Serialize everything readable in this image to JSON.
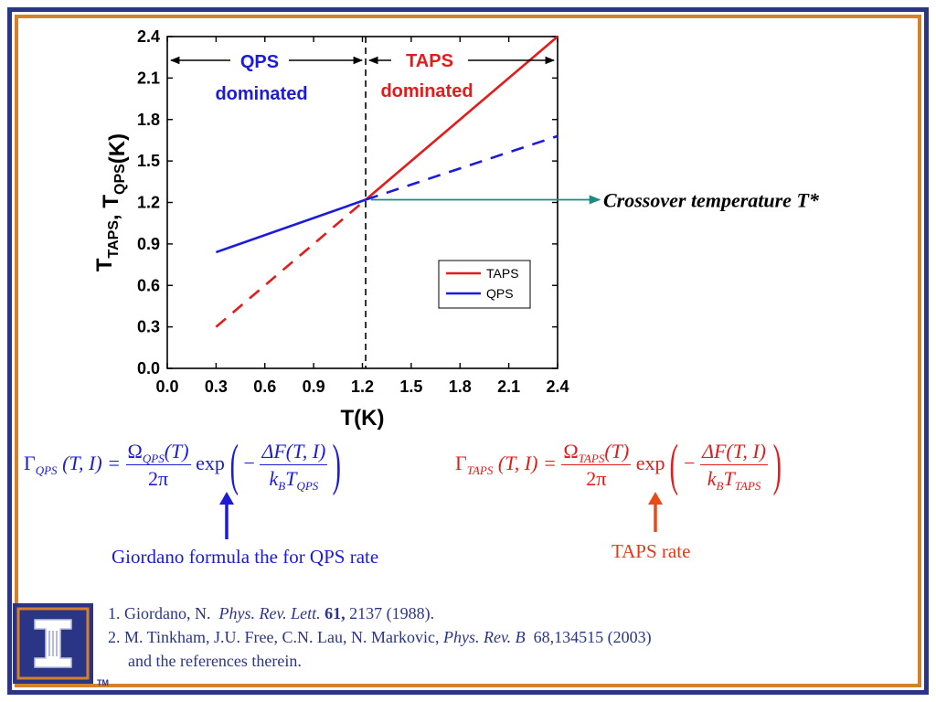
{
  "chart_data": {
    "type": "line",
    "xlabel": "T(K)",
    "ylabel_main": "T",
    "ylabel_sub1": "TAPS",
    "ylabel_mid": ", T",
    "ylabel_sub2": "QPS",
    "ylabel_end": "(K)",
    "xlim": [
      0.0,
      2.4
    ],
    "ylim": [
      0.0,
      2.4
    ],
    "x_ticks": [
      "0.0",
      "0.3",
      "0.6",
      "0.9",
      "1.2",
      "1.5",
      "1.8",
      "2.1",
      "2.4"
    ],
    "y_ticks": [
      "0.0",
      "0.3",
      "0.6",
      "0.9",
      "1.2",
      "1.5",
      "1.8",
      "2.1",
      "2.4"
    ],
    "crossover_x": 1.22,
    "series": [
      {
        "name": "TAPS",
        "color": "#e21b1b",
        "segments": [
          {
            "style": "dashed",
            "x": [
              0.3,
              1.22
            ],
            "y": [
              0.3,
              1.22
            ]
          },
          {
            "style": "solid",
            "x": [
              1.22,
              2.4
            ],
            "y": [
              1.22,
              2.4
            ]
          }
        ]
      },
      {
        "name": "QPS",
        "color": "#1b1bd8",
        "segments": [
          {
            "style": "solid",
            "x": [
              0.3,
              1.22
            ],
            "y": [
              0.84,
              1.22
            ]
          },
          {
            "style": "dashed",
            "x": [
              1.22,
              2.4
            ],
            "y": [
              1.22,
              1.68
            ]
          }
        ]
      }
    ],
    "region_labels": [
      {
        "line1": "QPS",
        "line2": "dominated",
        "color": "#1b1bd8",
        "side": "left"
      },
      {
        "line1": "TAPS",
        "line2": "dominated",
        "color": "#e21b1b",
        "side": "right"
      }
    ],
    "legend": {
      "position": "lower-right",
      "entries": [
        "TAPS",
        "QPS"
      ]
    },
    "annotation": {
      "text": "Crossover temperature T*",
      "arrow_color": "#1f8a80"
    }
  },
  "equations": {
    "qps": {
      "gamma": "Γ",
      "gamma_sub": "QPS",
      "args": "(T, I) =",
      "omega": "Ω",
      "omega_sub": "QPS",
      "omega_arg": "(T)",
      "den": "2π",
      "exp": "exp",
      "num2": "ΔF(T, I)",
      "minus": "−",
      "kb": "k",
      "kb_sub": "B",
      "t": "T",
      "t_sub": "QPS"
    },
    "taps": {
      "gamma": "Γ",
      "gamma_sub": "TAPS",
      "args": "(T, I) =",
      "omega": "Ω",
      "omega_sub": "TAPS",
      "omega_arg": "(T)",
      "den": "2π",
      "exp": "exp",
      "num2": "ΔF(T, I)",
      "minus": "−",
      "kb": "k",
      "kb_sub": "B",
      "t": "T",
      "t_sub": "TAPS"
    }
  },
  "captions": {
    "qps": "Giordano formula the for QPS rate",
    "taps": "TAPS rate",
    "qps_arrow_color": "#1b1bd8",
    "taps_arrow_color": "#e84a1a"
  },
  "references": {
    "ref1_prefix": "1. Giordano, N.",
    "ref1_journal": "Phys. Rev. Lett.",
    "ref1_volume": "61,",
    "ref1_rest": "2137 (1988).",
    "ref2_prefix": "2. M. Tinkham, J.U. Free, C.N. Lau, N. Markovic,",
    "ref2_journal": "Phys. Rev. B",
    "ref2_rest": "68,134515 (2003)",
    "ref2_line2": "and the references therein."
  },
  "branding": {
    "logo_icon": "university-block-i-icon",
    "tm": "TM",
    "frame_colors": [
      "#2b3585",
      "#d5802b"
    ]
  }
}
